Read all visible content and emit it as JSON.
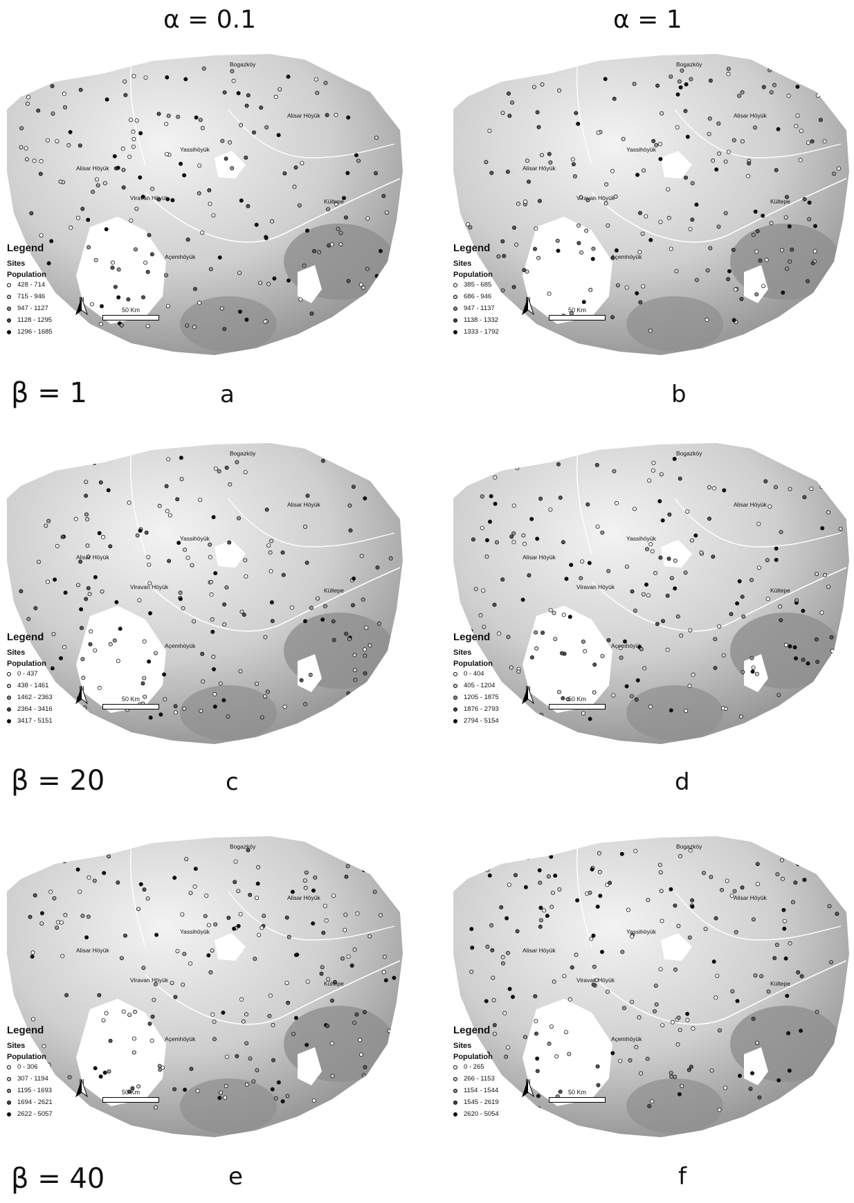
{
  "columns": [
    {
      "title": "α = 0.1"
    },
    {
      "title": "α = 1"
    }
  ],
  "rows": [
    {
      "beta": "β = 1"
    },
    {
      "beta": "β = 20"
    },
    {
      "beta": "β = 40"
    }
  ],
  "legend_title": "Legend",
  "legend_sites": "Sites",
  "legend_population": "Population",
  "north_label": "N",
  "scale_label": "50 Km",
  "places": [
    "Bogazköy",
    "Alisar Höyük",
    "Yassihöyük",
    "Alisar Höyük",
    "Kültepe",
    "Viravan Höyük",
    "Açemhöyük"
  ],
  "colors": {
    "terrain_light": "#f3f3f3",
    "terrain_mid": "#cfcfcf",
    "terrain_dark": "#9a9a9a",
    "water": "#ffffff"
  },
  "panels": [
    {
      "letter": "a",
      "classes": [
        "428 - 714",
        "715 - 946",
        "947 - 1127",
        "1128 - 1295",
        "1296 - 1685"
      ]
    },
    {
      "letter": "b",
      "classes": [
        "385 - 685",
        "686 - 946",
        "947 - 1137",
        "1138 - 1332",
        "1333 - 1792"
      ]
    },
    {
      "letter": "c",
      "classes": [
        "0 - 437",
        "438 - 1461",
        "1462 - 2363",
        "2364 - 3416",
        "3417 - 5151"
      ]
    },
    {
      "letter": "d",
      "classes": [
        "0 - 404",
        "405 - 1204",
        "1205 - 1875",
        "1876 - 2793",
        "2794 - 5154"
      ]
    },
    {
      "letter": "e",
      "classes": [
        "0 - 306",
        "307 - 1194",
        "1195 - 1693",
        "1694 - 2621",
        "2622 - 5057"
      ]
    },
    {
      "letter": "f",
      "classes": [
        "0 - 265",
        "266 - 1153",
        "1154 - 1544",
        "1545 - 2619",
        "2620 - 5054"
      ]
    }
  ]
}
